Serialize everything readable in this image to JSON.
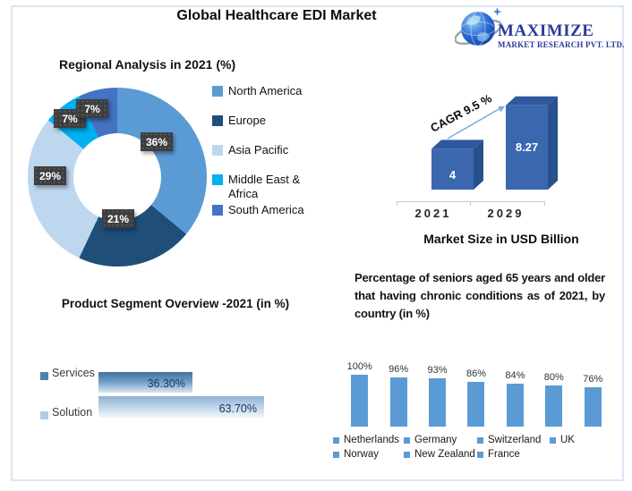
{
  "header": {
    "title": "Global Healthcare EDI Market",
    "logo": {
      "brand": "MAXIMIZE",
      "subtitle": "MARKET RESEARCH PVT. LTD.",
      "brand_color": "#2B3A98"
    }
  },
  "chart_data": [
    {
      "id": "regional",
      "type": "pie",
      "title": "Regional Analysis in 2021 (%)",
      "hole": 0.49,
      "legend_position": "right",
      "segments": [
        {
          "label": "North America",
          "value": 36,
          "text": "36%",
          "color": "#5B9BD5"
        },
        {
          "label": "Europe",
          "value": 21,
          "text": "21%",
          "color": "#1F4E79"
        },
        {
          "label": "Asia Pacific",
          "value": 29,
          "text": "29%",
          "color": "#BDD7EE"
        },
        {
          "label": "Middle East & Africa",
          "value": 7,
          "text": "7%",
          "color": "#00B0F0"
        },
        {
          "label": "South America",
          "value": 7,
          "text": "7%",
          "color": "#4472C4"
        }
      ]
    },
    {
      "id": "market_size",
      "type": "bar",
      "style": "3d",
      "categories": [
        "2021",
        "2029"
      ],
      "values": [
        4,
        8.27
      ],
      "value_labels": [
        "4",
        "8.27"
      ],
      "annotation": "CAGR 9.5 %",
      "xlabel": "Market Size in USD Billion",
      "ylim": [
        0,
        9
      ],
      "bar_color_front": "#3B67AF",
      "bar_color_top": "#2E589E",
      "bar_color_side": "#27508E",
      "arrow_color": "#7FA9DC"
    },
    {
      "id": "product_segment",
      "type": "bar",
      "orientation": "horizontal",
      "title": "Product Segment Overview -2021 (in %)",
      "categories": [
        "Services",
        "Solution"
      ],
      "values": [
        36.3,
        63.7
      ],
      "value_labels": [
        "36.30%",
        "63.70%"
      ],
      "colors": [
        "#4E7FB0",
        "#B3CCE4"
      ],
      "xlim": [
        0,
        100
      ]
    },
    {
      "id": "seniors_chronic",
      "type": "bar",
      "title": "Percentage of seniors aged 65 years and older that having chronic conditions as of 2021, by country (in %)",
      "categories": [
        "Netherlands",
        "Germany",
        "Switzerland",
        "UK",
        "Norway",
        "New Zealand",
        "France"
      ],
      "values": [
        100,
        96,
        93,
        86,
        84,
        80,
        76
      ],
      "value_labels": [
        "100%",
        "96%",
        "93%",
        "86%",
        "84%",
        "80%",
        "76%"
      ],
      "bar_color": "#5B9BD5",
      "ylim": [
        0,
        100
      ],
      "legend_rows": [
        [
          "Netherlands",
          "Germany",
          "Switzerland",
          "UK"
        ],
        [
          "Norway",
          "New Zealand",
          "France"
        ]
      ]
    }
  ]
}
